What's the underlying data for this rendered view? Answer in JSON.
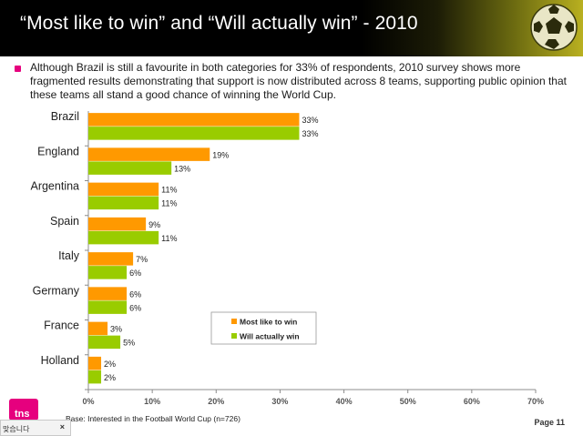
{
  "header": {
    "title": "“Most like to win” and “Will actually win” - 2010"
  },
  "summary": "Although Brazil is still a favourite in both categories for 33% of respondents, 2010 survey shows more fragmented results demonstrating that support is now distributed across 8 teams, supporting public opinion that these teams all stand a good chance of winning the World Cup.",
  "footnote": "Base: Interested in the Football World Cup (n=726)",
  "page_number": "Page 11",
  "logo_text": "tns",
  "popup": {
    "label": "맞습니다",
    "close_label": "×"
  },
  "colors": {
    "most_like": "#ff9900",
    "will_win": "#99cc00",
    "header_bg": "#000000",
    "bullet": "#e6007e"
  },
  "chart_data": {
    "type": "bar",
    "orientation": "horizontal",
    "categories": [
      "Brazil",
      "England",
      "Argentina",
      "Spain",
      "Italy",
      "Germany",
      "France",
      "Holland"
    ],
    "series": [
      {
        "name": "Most like to win",
        "values": [
          33,
          19,
          11,
          9,
          7,
          6,
          3,
          2
        ],
        "color": "#ff9900"
      },
      {
        "name": "Will actually win",
        "values": [
          33,
          13,
          11,
          11,
          6,
          6,
          5,
          2
        ],
        "color": "#99cc00"
      }
    ],
    "value_labels": [
      [
        "33%",
        "19%",
        "11%",
        "9%",
        "7%",
        "6%",
        "3%",
        "2%"
      ],
      [
        "33%",
        "13%",
        "11%",
        "11%",
        "6%",
        "6%",
        "5%",
        "2%"
      ]
    ],
    "xlim": [
      0,
      70
    ],
    "xticks": [
      0,
      10,
      20,
      30,
      40,
      50,
      60,
      70
    ],
    "xtick_labels": [
      "0%",
      "10%",
      "20%",
      "30%",
      "40%",
      "50%",
      "60%",
      "70%"
    ],
    "grid": false,
    "legend_position": "lower-center-right",
    "title": "",
    "xlabel": "",
    "ylabel": ""
  }
}
